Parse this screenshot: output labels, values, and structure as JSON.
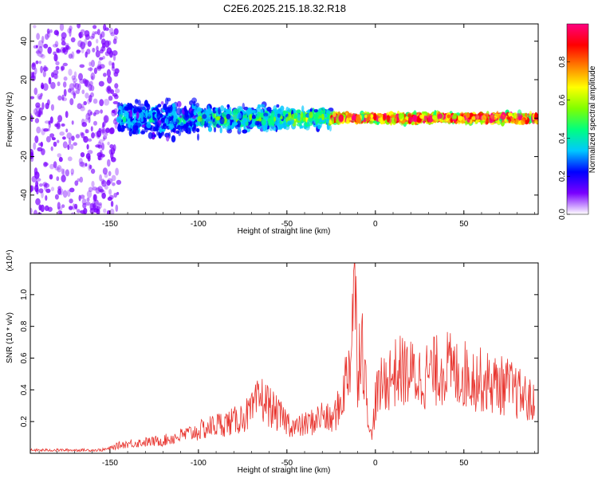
{
  "chart_data": [
    {
      "type": "heatmap",
      "title": "C2E6.2025.215.18.32.R18",
      "xlabel": "Height of straight line (km)",
      "ylabel": "Frequency (Hz)",
      "xlim": [
        -195,
        92
      ],
      "ylim": [
        -50,
        49
      ],
      "xticks": [
        "-150",
        "-100",
        "-50",
        "0",
        "50"
      ],
      "yticks": [
        "-40",
        "-20",
        "0",
        "20",
        "40"
      ],
      "colorbar": {
        "label": "Normalized spectral amplitude",
        "range": [
          0,
          1
        ],
        "ticks": [
          "0.0",
          "0.2",
          "0.4",
          "0.6",
          "0.8"
        ],
        "colors": [
          "#ffffff",
          "#7a00ff",
          "#0000ff",
          "#00c8ff",
          "#00ff80",
          "#80ff00",
          "#ffff00",
          "#ff8000",
          "#ff0000",
          "#ff0080"
        ]
      },
      "regions": [
        {
          "x_range": [
            -195,
            -145
          ],
          "freq_spread": 49,
          "amplitude": 0.1
        },
        {
          "x_range": [
            -145,
            -100
          ],
          "freq_spread": 12,
          "amplitude": 0.3
        },
        {
          "x_range": [
            -100,
            -50
          ],
          "freq_spread": 8,
          "amplitude": 0.4
        },
        {
          "x_range": [
            -50,
            -25
          ],
          "freq_spread": 6,
          "amplitude": 0.5
        },
        {
          "x_range": [
            -25,
            92
          ],
          "freq_spread": 3,
          "amplitude": 0.9
        }
      ]
    },
    {
      "type": "line",
      "xlabel": "Height of straight line (km)",
      "ylabel": "SNR (10 * v/v)",
      "multiplier": "(x10⁴)",
      "xlim": [
        -195,
        92
      ],
      "ylim": [
        0,
        1.2
      ],
      "xticks": [
        "-150",
        "-100",
        "-50",
        "0",
        "50"
      ],
      "yticks": [
        "0.2",
        "0.4",
        "0.6",
        "0.8",
        "1.0"
      ],
      "color": "#e8352f",
      "series": [
        {
          "x": [
            -195,
            -180,
            -165,
            -155,
            -150,
            -145,
            -140,
            -130,
            -120,
            -110,
            -100,
            -90,
            -80,
            -70,
            -65,
            -60,
            -55,
            -50,
            -45,
            -40,
            -35,
            -30,
            -25,
            -20,
            -16,
            -14,
            -12,
            -10,
            -8,
            -5,
            -2,
            0,
            5,
            10,
            15,
            20,
            25,
            30,
            35,
            40,
            45,
            50,
            55,
            60,
            65,
            70,
            75,
            80,
            85,
            90
          ],
          "y": [
            0.02,
            0.02,
            0.02,
            0.02,
            0.03,
            0.05,
            0.06,
            0.07,
            0.08,
            0.11,
            0.14,
            0.18,
            0.2,
            0.26,
            0.35,
            0.3,
            0.24,
            0.2,
            0.16,
            0.18,
            0.2,
            0.24,
            0.2,
            0.3,
            0.5,
            0.62,
            1.18,
            0.5,
            0.8,
            0.35,
            0.08,
            0.35,
            0.45,
            0.5,
            0.52,
            0.5,
            0.48,
            0.5,
            0.52,
            0.55,
            0.5,
            0.5,
            0.48,
            0.46,
            0.44,
            0.43,
            0.42,
            0.38,
            0.35,
            0.3
          ]
        }
      ]
    }
  ]
}
